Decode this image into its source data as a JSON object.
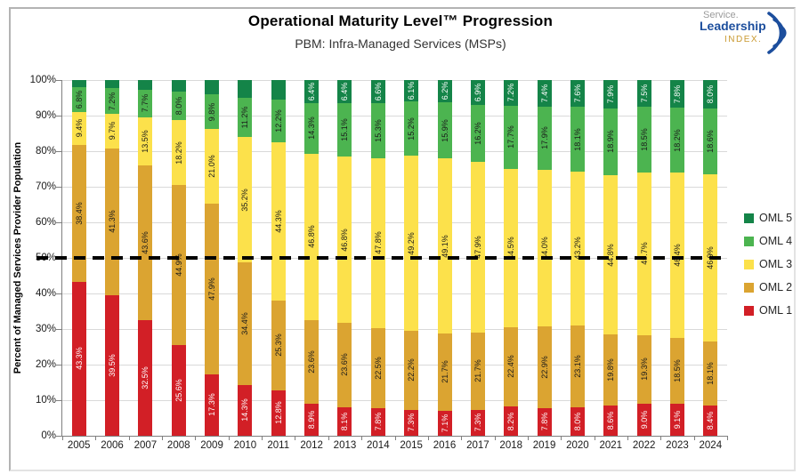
{
  "header": {
    "logo": {
      "service": "Service.",
      "leadership": "Leadership",
      "index": "INDEX."
    }
  },
  "chart_data": {
    "type": "bar",
    "stacked": true,
    "title": "Operational Maturity Level™ Progression",
    "subtitle": "PBM: Infra-Managed Services (MSPs)",
    "ylabel": "Percent of Managed Services Provider Population",
    "ylim": [
      0,
      100
    ],
    "grid": "horizontal",
    "ytick_labels": [
      "0%",
      "10%",
      "20%",
      "30%",
      "40%",
      "50%",
      "60%",
      "70%",
      "80%",
      "90%",
      "100%"
    ],
    "categories": [
      "2005",
      "2006",
      "2007",
      "2008",
      "2009",
      "2010",
      "2011",
      "2012",
      "2013",
      "2014",
      "2015",
      "2016",
      "2017",
      "2018",
      "2019",
      "2020",
      "2021",
      "2022",
      "2023",
      "2024"
    ],
    "series": [
      {
        "name": "OML 1",
        "color": "#d21f26",
        "label_color": "#ffffff",
        "values": [
          43.3,
          39.5,
          32.5,
          25.6,
          17.3,
          14.3,
          12.8,
          8.9,
          8.1,
          7.8,
          7.3,
          7.1,
          7.3,
          8.2,
          7.8,
          8.0,
          8.6,
          9.0,
          9.1,
          8.4
        ],
        "labels": [
          "43.3%",
          "39.5%",
          "32.5%",
          "25.6%",
          "17.3%",
          "14.3%",
          "12.8%",
          "8.9%",
          "8.1%",
          "7.8%",
          "7.3%",
          "7.1%",
          "7.3%",
          "8.2%",
          "7.8%",
          "8.0%",
          "8.6%",
          "9.0%",
          "9.1%",
          "8.4%"
        ]
      },
      {
        "name": "OML 2",
        "color": "#dba431",
        "label_color": "#1a1a1a",
        "values": [
          38.4,
          41.3,
          43.6,
          44.9,
          47.9,
          34.4,
          25.3,
          23.6,
          23.6,
          22.5,
          22.2,
          21.7,
          21.7,
          22.4,
          22.9,
          23.1,
          19.8,
          19.3,
          18.5,
          18.1
        ],
        "labels": [
          "38.4%",
          "41.3%",
          "43.6%",
          "44.9%",
          "47.9%",
          "34.4%",
          "25.3%",
          "23.6%",
          "23.6%",
          "22.5%",
          "22.2%",
          "21.7%",
          "21.7%",
          "22.4%",
          "22.9%",
          "23.1%",
          "19.8%",
          "19.3%",
          "18.5%",
          "18.1%"
        ]
      },
      {
        "name": "OML 3",
        "color": "#fce14b",
        "label_color": "#1a1a1a",
        "values": [
          9.4,
          9.7,
          13.5,
          18.2,
          21.0,
          35.2,
          44.3,
          46.8,
          46.8,
          47.8,
          49.2,
          49.1,
          47.9,
          44.5,
          44.0,
          43.2,
          44.8,
          45.7,
          46.4,
          46.9
        ],
        "labels": [
          "9.4%",
          "9.7%",
          "13.5%",
          "18.2%",
          "21.0%",
          "35.2%",
          "44.3%",
          "46.8%",
          "46.8%",
          "47.8%",
          "49.2%",
          "49.1%",
          "47.9%",
          "44.5%",
          "44.0%",
          "43.2%",
          "44.8%",
          "45.7%",
          "46.4%",
          "46.9%"
        ]
      },
      {
        "name": "OML 4",
        "color": "#4cb450",
        "label_color": "#1a1a1a",
        "values": [
          6.8,
          7.2,
          7.7,
          8.0,
          9.8,
          11.2,
          12.2,
          14.3,
          15.1,
          15.3,
          15.2,
          15.9,
          16.2,
          17.7,
          17.9,
          18.1,
          18.9,
          18.5,
          18.2,
          18.6
        ],
        "labels": [
          "6.8%",
          "7.2%",
          "7.7%",
          "8.0%",
          "9.8%",
          "11.2%",
          "12.2%",
          "14.3%",
          "15.1%",
          "15.3%",
          "15.2%",
          "15.9%",
          "16.2%",
          "17.7%",
          "17.9%",
          "18.1%",
          "18.9%",
          "18.5%",
          "18.2%",
          "18.6%"
        ]
      },
      {
        "name": "OML 5",
        "color": "#148448",
        "label_color": "#ffffff",
        "values": [
          2.1,
          2.3,
          2.7,
          3.3,
          4.0,
          4.9,
          5.4,
          6.4,
          6.4,
          6.6,
          6.1,
          6.2,
          6.9,
          7.2,
          7.4,
          7.6,
          7.9,
          7.5,
          7.8,
          8.0
        ],
        "labels": [
          "",
          "",
          "",
          "",
          "",
          "",
          "",
          "6.4%",
          "6.4%",
          "6.6%",
          "6.1%",
          "6.2%",
          "6.9%",
          "7.2%",
          "7.4%",
          "7.6%",
          "7.9%",
          "7.5%",
          "7.8%",
          "8.0%"
        ]
      }
    ],
    "reference_line": {
      "value": 50,
      "style": "dashed",
      "color": "#000000"
    },
    "legend": {
      "position": "right",
      "entries": [
        {
          "label": "OML 5",
          "color": "#148448"
        },
        {
          "label": "OML 4",
          "color": "#4cb450"
        },
        {
          "label": "OML 3",
          "color": "#fce14b"
        },
        {
          "label": "OML 2",
          "color": "#dba431"
        },
        {
          "label": "OML 1",
          "color": "#d21f26"
        }
      ]
    }
  }
}
